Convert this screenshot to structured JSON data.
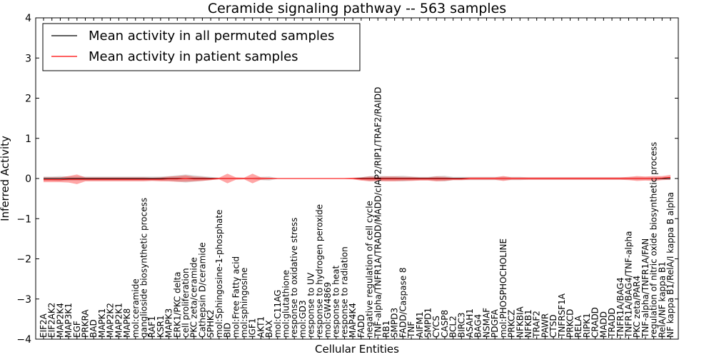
{
  "chart_data": {
    "type": "line",
    "title": "Ceramide signaling pathway -- 563 samples",
    "xlabel": "Cellular Entities",
    "ylabel": "Inferred Activity",
    "ylim": [
      -4,
      4
    ],
    "yticks": [
      -4,
      -3,
      -2,
      -1,
      0,
      1,
      2,
      3,
      4
    ],
    "ytick_labels": [
      "−4",
      "−3",
      "−2",
      "−1",
      "0",
      "1",
      "2",
      "3",
      "4"
    ],
    "legend": {
      "position": "top-left"
    },
    "categories": [
      "EIF2A",
      "EIF2AK2",
      "MAP2K4",
      "MAP3K1",
      "EGF",
      "PRKRA",
      "BAD",
      "MAPK1",
      "MAP2K2",
      "MAP2K1",
      "MAPK8",
      "mol:ceramide",
      "ganglioside biosynthetic process",
      "RAF1",
      "KSR1",
      "MAPK3",
      "ERK1/PKC delta",
      "cell proliferation",
      "PKC zeta/ceramide",
      "Cathepsin D/ceramide",
      "SPHK2",
      "mol:Sphingosine-1-phosphate",
      "BID",
      "mol:Free Fatty acid",
      "mol:sphingosine",
      "IGF1",
      "AKT1",
      "BAX",
      "mol:C11AG",
      "mol:glutathione",
      "response to oxidative stress",
      "mol:GD3",
      "response to UV",
      "response to hydrogen peroxide",
      "mol:GW4869",
      "response to heat",
      "response to radiation",
      "MAP4K4",
      "FADD",
      "negative regulation of cell cycle",
      "TNF-alpha/TNFR1A/TRADD/MADD/cIAP2/RIP1/TRAF2/RAIDD",
      "RB1",
      "SMPD3",
      "FADD/Caspase 8",
      "TNF",
      "AIFM1",
      "SMPD1",
      "CYCS",
      "CASP8",
      "BCL2",
      "BIRC3",
      "ASAH1",
      "BAG4",
      "NSMAF",
      "PDGFA",
      "mol:PHOSPHOCHOLINE",
      "PRKCZ",
      "NFKBIA",
      "NFKB1",
      "TRAF2",
      "PAWR",
      "CTSD",
      "TNFRSF1A",
      "PRKCD",
      "RELA",
      "RIPK1",
      "CRADD",
      "MADD",
      "TRADD",
      "TNFR1A/BAG4",
      "TNFR1A/BAG4/TNF-alpha",
      "PKC zeta/PAR4",
      "TNF-alpha/TNFR1A/FAN",
      "regulation of nitric oxide biosynthetic process",
      "RelA/NF kappa B1",
      "NF kappa B1/RelA/I kappa B alpha"
    ],
    "series": [
      {
        "name": "Mean activity in all permuted samples",
        "color": "#000000",
        "values": [
          0,
          0,
          0,
          0,
          0,
          0,
          0,
          0,
          0,
          0,
          0,
          0,
          0,
          0,
          0,
          0,
          0,
          0,
          0,
          0,
          0,
          0,
          0,
          0,
          0,
          0,
          0,
          0,
          0,
          0,
          0,
          0,
          0,
          0,
          0,
          0,
          0,
          0,
          0,
          0,
          0,
          0,
          0,
          0,
          0,
          0,
          0,
          0,
          0,
          0,
          0,
          0,
          0,
          0,
          0,
          0,
          0,
          0,
          0,
          0,
          0,
          0,
          0,
          0,
          0,
          0,
          0,
          0,
          0,
          0,
          0,
          0,
          0,
          0,
          0,
          0
        ],
        "band": [
          0.05,
          0.05,
          0.06,
          0.05,
          0.05,
          0.05,
          0.05,
          0.05,
          0.05,
          0.05,
          0.05,
          0.05,
          0.05,
          0.05,
          0.05,
          0.06,
          0.08,
          0.1,
          0.08,
          0.06,
          0.04,
          0.02,
          0.02,
          0.02,
          0.02,
          0.02,
          0.04,
          0.05,
          0.01,
          0.01,
          0.01,
          0.01,
          0.01,
          0.01,
          0.01,
          0.01,
          0.01,
          0.01,
          0.03,
          0.06,
          0.07,
          0.06,
          0.06,
          0.07,
          0.05,
          0.04,
          0.04,
          0.06,
          0.07,
          0.04,
          0.04,
          0.04,
          0.04,
          0.04,
          0.04,
          0.04,
          0.04,
          0.04,
          0.03,
          0.03,
          0.03,
          0.03,
          0.03,
          0.03,
          0.03,
          0.03,
          0.03,
          0.03,
          0.03,
          0.03,
          0.03,
          0.03,
          0.03,
          0.03,
          0.03,
          0.03
        ]
      },
      {
        "name": "Mean activity in patient samples",
        "color": "#ff0000",
        "values": [
          -0.03,
          -0.03,
          -0.03,
          -0.02,
          -0.02,
          -0.02,
          -0.02,
          -0.02,
          -0.02,
          -0.02,
          -0.02,
          -0.02,
          -0.02,
          -0.02,
          -0.02,
          -0.01,
          -0.01,
          0,
          -0.01,
          -0.01,
          -0.01,
          0,
          0,
          0,
          0,
          0,
          0,
          0,
          0,
          0,
          0,
          0,
          0,
          0,
          0,
          0,
          0,
          0,
          -0.01,
          -0.01,
          -0.01,
          -0.01,
          -0.01,
          -0.01,
          -0.01,
          -0.01,
          -0.01,
          -0.01,
          -0.01,
          -0.01,
          -0.01,
          0,
          0,
          0,
          0,
          0,
          0,
          0,
          0,
          0,
          0,
          0,
          0,
          0,
          0,
          0,
          0,
          0,
          0,
          0,
          0,
          0,
          0,
          0,
          0.01,
          0.03
        ],
        "band": [
          0.06,
          0.06,
          0.06,
          0.08,
          0.12,
          0.05,
          0.05,
          0.05,
          0.05,
          0.05,
          0.05,
          0.05,
          0.05,
          0.04,
          0.05,
          0.06,
          0.07,
          0.08,
          0.06,
          0.05,
          0.03,
          0.02,
          0.12,
          0.03,
          0.02,
          0.12,
          0.03,
          0.02,
          0.01,
          0.01,
          0.01,
          0.01,
          0.01,
          0.01,
          0.01,
          0.01,
          0.01,
          0.02,
          0.04,
          0.06,
          0.05,
          0.06,
          0.06,
          0.05,
          0.05,
          0.04,
          0.04,
          0.06,
          0.05,
          0.03,
          0.03,
          0.03,
          0.03,
          0.03,
          0.03,
          0.06,
          0.03,
          0.03,
          0.03,
          0.03,
          0.03,
          0.03,
          0.03,
          0.03,
          0.03,
          0.03,
          0.03,
          0.03,
          0.03,
          0.03,
          0.04,
          0.06,
          0.05,
          0.06,
          0.05,
          0.06
        ]
      }
    ]
  }
}
